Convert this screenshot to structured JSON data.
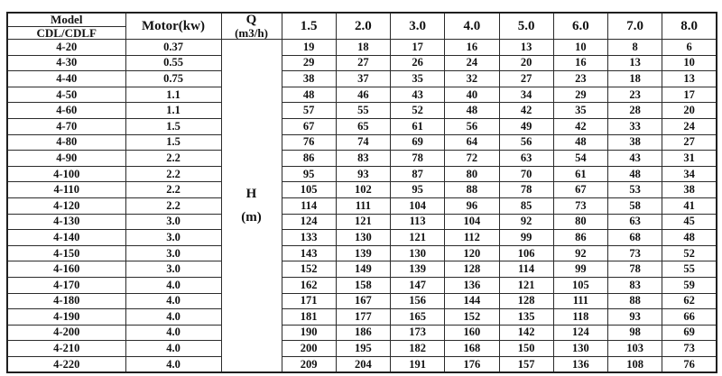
{
  "colors": {
    "background": "#ffffff",
    "text": "#111111",
    "border": "#2b2b2b"
  },
  "chart_data": {
    "type": "table",
    "header": {
      "model_title": "Model",
      "model_series": "CDL/CDLF",
      "motor_label": "Motor(kw)",
      "flow_label": "Q",
      "flow_unit": "(m3/h)",
      "flow_rates_m3h": [
        "1.5",
        "2.0",
        "3.0",
        "4.0",
        "5.0",
        "6.0",
        "7.0",
        "8.0"
      ]
    },
    "head_unit": {
      "symbol": "H",
      "unit": "(m)"
    },
    "rows": [
      {
        "model": "4-20",
        "motor_kw": "0.37",
        "head_m": [
          19,
          18,
          17,
          16,
          13,
          10,
          8,
          6
        ]
      },
      {
        "model": "4-30",
        "motor_kw": "0.55",
        "head_m": [
          29,
          27,
          26,
          24,
          20,
          16,
          13,
          10
        ]
      },
      {
        "model": "4-40",
        "motor_kw": "0.75",
        "head_m": [
          38,
          37,
          35,
          32,
          27,
          23,
          18,
          13
        ]
      },
      {
        "model": "4-50",
        "motor_kw": "1.1",
        "head_m": [
          48,
          46,
          43,
          40,
          34,
          29,
          23,
          17
        ]
      },
      {
        "model": "4-60",
        "motor_kw": "1.1",
        "head_m": [
          57,
          55,
          52,
          48,
          42,
          35,
          28,
          20
        ]
      },
      {
        "model": "4-70",
        "motor_kw": "1.5",
        "head_m": [
          67,
          65,
          61,
          56,
          49,
          42,
          33,
          24
        ]
      },
      {
        "model": "4-80",
        "motor_kw": "1.5",
        "head_m": [
          76,
          74,
          69,
          64,
          56,
          48,
          38,
          27
        ]
      },
      {
        "model": "4-90",
        "motor_kw": "2.2",
        "head_m": [
          86,
          83,
          78,
          72,
          63,
          54,
          43,
          31
        ]
      },
      {
        "model": "4-100",
        "motor_kw": "2.2",
        "head_m": [
          95,
          93,
          87,
          80,
          70,
          61,
          48,
          34
        ]
      },
      {
        "model": "4-110",
        "motor_kw": "2.2",
        "head_m": [
          105,
          102,
          95,
          88,
          78,
          67,
          53,
          38
        ]
      },
      {
        "model": "4-120",
        "motor_kw": "2.2",
        "head_m": [
          114,
          111,
          104,
          96,
          85,
          73,
          58,
          41
        ]
      },
      {
        "model": "4-130",
        "motor_kw": "3.0",
        "head_m": [
          124,
          121,
          113,
          104,
          92,
          80,
          63,
          45
        ]
      },
      {
        "model": "4-140",
        "motor_kw": "3.0",
        "head_m": [
          133,
          130,
          121,
          112,
          99,
          86,
          68,
          48
        ]
      },
      {
        "model": "4-150",
        "motor_kw": "3.0",
        "head_m": [
          143,
          139,
          130,
          120,
          106,
          92,
          73,
          52
        ]
      },
      {
        "model": "4-160",
        "motor_kw": "3.0",
        "head_m": [
          152,
          149,
          139,
          128,
          114,
          99,
          78,
          55
        ]
      },
      {
        "model": "4-170",
        "motor_kw": "4.0",
        "head_m": [
          162,
          158,
          147,
          136,
          121,
          105,
          83,
          59
        ]
      },
      {
        "model": "4-180",
        "motor_kw": "4.0",
        "head_m": [
          171,
          167,
          156,
          144,
          128,
          111,
          88,
          62
        ]
      },
      {
        "model": "4-190",
        "motor_kw": "4.0",
        "head_m": [
          181,
          177,
          165,
          152,
          135,
          118,
          93,
          66
        ]
      },
      {
        "model": "4-200",
        "motor_kw": "4.0",
        "head_m": [
          190,
          186,
          173,
          160,
          142,
          124,
          98,
          69
        ]
      },
      {
        "model": "4-210",
        "motor_kw": "4.0",
        "head_m": [
          200,
          195,
          182,
          168,
          150,
          130,
          103,
          73
        ]
      },
      {
        "model": "4-220",
        "motor_kw": "4.0",
        "head_m": [
          209,
          204,
          191,
          176,
          157,
          136,
          108,
          76
        ]
      }
    ]
  }
}
